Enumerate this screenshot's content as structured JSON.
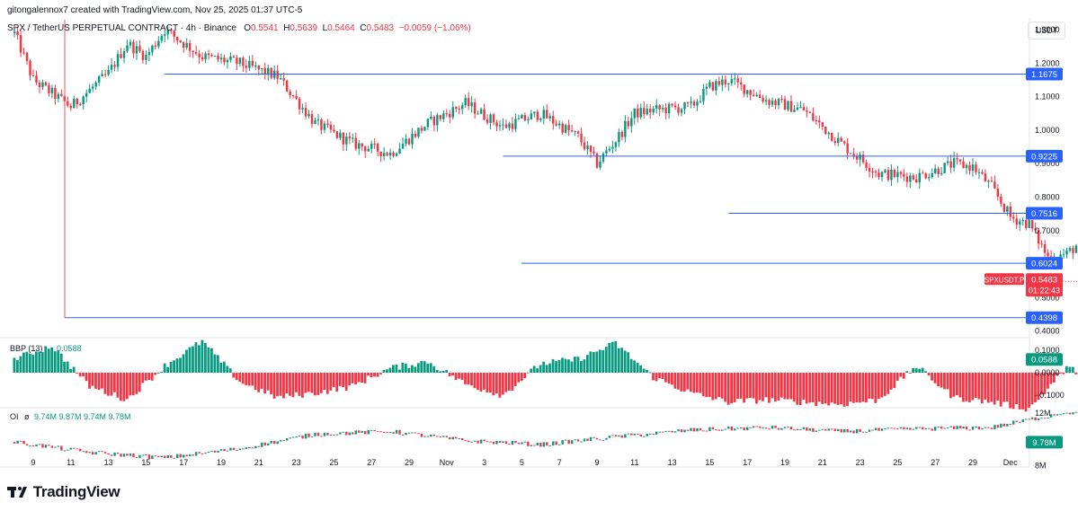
{
  "header": {
    "credit": "gitongalennox7 created with TradingView.com, Nov 25, 2025 01:37 UTC-5",
    "symbol": "SPX / TetherUS PERPETUAL CONTRACT · 4h · Binance",
    "o_label": "O",
    "o_value": "0.5541",
    "h_label": "H",
    "h_value": "0.5639",
    "l_label": "L",
    "l_value": "0.5464",
    "c_label": "C",
    "c_value": "0.5483",
    "change": "−0.0059 (−1.06%)"
  },
  "currency": "USDT",
  "footer": {
    "logo_text": "TradingView"
  },
  "colors": {
    "up": "#089981",
    "down": "#f23645",
    "line": "#2962ff",
    "grid": "#e0e3eb",
    "vline": "#f7525f"
  },
  "chart_data": [
    {
      "type": "candlestick",
      "title": "SPX / TetherUS PERPETUAL CONTRACT · 4h · Binance",
      "y_ticks": [
        "1.3000",
        "1.2000",
        "1.1000",
        "1.0000",
        "0.9000",
        "0.8000",
        "0.7000",
        "0.6000",
        "0.5000",
        "0.4000"
      ],
      "ylim": [
        0.38,
        1.33
      ],
      "x_ticks": [
        "9",
        "11",
        "13",
        "15",
        "17",
        "19",
        "21",
        "23",
        "25",
        "27",
        "29",
        "Nov",
        "3",
        "5",
        "7",
        "9",
        "11",
        "13",
        "15",
        "17",
        "19",
        "21",
        "23",
        "25",
        "27",
        "29",
        "Dec"
      ],
      "levels": [
        {
          "label": "1.1675",
          "value": 1.1675
        },
        {
          "label": "0.9225",
          "value": 0.9225
        },
        {
          "label": "0.7516",
          "value": 0.7516
        },
        {
          "label": "0.6024",
          "value": 0.6024
        },
        {
          "label": "0.4398",
          "value": 0.4398
        }
      ],
      "current_price": {
        "symbol": "SPXUSDT.P",
        "price": "0.5483",
        "value": 0.5483,
        "countdown": "01:22:43"
      },
      "close_path": [
        [
          0,
          1.29
        ],
        [
          1,
          1.15
        ],
        [
          3,
          1.07
        ],
        [
          5,
          1.17
        ],
        [
          6,
          1.26
        ],
        [
          7,
          1.22
        ],
        [
          8,
          1.3
        ],
        [
          10,
          1.22
        ],
        [
          12,
          1.2
        ],
        [
          14,
          1.16
        ],
        [
          16,
          1.02
        ],
        [
          18,
          0.96
        ],
        [
          20,
          0.93
        ],
        [
          22,
          1.02
        ],
        [
          24,
          1.08
        ],
        [
          26,
          1.01
        ],
        [
          28,
          1.05
        ],
        [
          30,
          0.98
        ],
        [
          31,
          0.9
        ],
        [
          32,
          0.97
        ],
        [
          33,
          1.05
        ],
        [
          34,
          1.06
        ],
        [
          36,
          1.07
        ],
        [
          37,
          1.13
        ],
        [
          38,
          1.15
        ],
        [
          40,
          1.09
        ],
        [
          42,
          1.06
        ],
        [
          44,
          0.96
        ],
        [
          46,
          0.87
        ],
        [
          48,
          0.86
        ],
        [
          50,
          0.9
        ],
        [
          51,
          0.89
        ],
        [
          52,
          0.83
        ],
        [
          53,
          0.74
        ],
        [
          54,
          0.72
        ],
        [
          55,
          0.62
        ],
        [
          56,
          0.63
        ],
        [
          57,
          0.68
        ],
        [
          59,
          0.7
        ],
        [
          60,
          0.64
        ],
        [
          61,
          0.72
        ],
        [
          62,
          0.66
        ],
        [
          63,
          0.71
        ],
        [
          65,
          0.73
        ],
        [
          66,
          0.72
        ],
        [
          67,
          0.7
        ],
        [
          68,
          0.68
        ],
        [
          69,
          0.64
        ],
        [
          70,
          0.58
        ],
        [
          71,
          0.54
        ],
        [
          72,
          0.53
        ],
        [
          73,
          0.52
        ],
        [
          74,
          0.5
        ],
        [
          75,
          0.49
        ],
        [
          76,
          0.47
        ],
        [
          77,
          0.52
        ],
        [
          78,
          0.55
        ],
        [
          79,
          0.52
        ],
        [
          80,
          0.57
        ],
        [
          81,
          0.49
        ],
        [
          82,
          0.46
        ],
        [
          83,
          0.45
        ],
        [
          84,
          0.45
        ],
        [
          85,
          0.47
        ],
        [
          86,
          0.5
        ],
        [
          87,
          0.52
        ],
        [
          88,
          0.54
        ],
        [
          89,
          0.58
        ],
        [
          90,
          0.55
        ]
      ]
    },
    {
      "type": "histogram",
      "indicator": "BBP (13)",
      "value_label": "0.0588",
      "y_ticks": [
        "0.1000",
        "0.0000",
        "−0.1000"
      ],
      "ylim": [
        -0.155,
        0.155
      ],
      "path": [
        [
          0,
          0.06
        ],
        [
          2,
          0.12
        ],
        [
          4,
          -0.06
        ],
        [
          6,
          -0.12
        ],
        [
          8,
          0.03
        ],
        [
          10,
          0.14
        ],
        [
          12,
          -0.04
        ],
        [
          14,
          -0.11
        ],
        [
          16,
          -0.09
        ],
        [
          18,
          -0.06
        ],
        [
          20,
          0.02
        ],
        [
          22,
          0.05
        ],
        [
          24,
          -0.05
        ],
        [
          26,
          -0.1
        ],
        [
          28,
          0.04
        ],
        [
          30,
          0.06
        ],
        [
          32,
          0.13
        ],
        [
          34,
          -0.02
        ],
        [
          36,
          -0.09
        ],
        [
          38,
          -0.13
        ],
        [
          40,
          -0.12
        ],
        [
          42,
          -0.13
        ],
        [
          44,
          -0.14
        ],
        [
          46,
          -0.12
        ],
        [
          48,
          0.03
        ],
        [
          50,
          -0.11
        ],
        [
          52,
          -0.13
        ],
        [
          54,
          -0.16
        ],
        [
          56,
          0.02
        ],
        [
          58,
          -0.03
        ],
        [
          60,
          -0.06
        ],
        [
          62,
          0.06
        ],
        [
          64,
          0.03
        ],
        [
          66,
          -0.05
        ],
        [
          68,
          -0.08
        ],
        [
          70,
          -0.12
        ],
        [
          72,
          -0.16
        ],
        [
          74,
          -0.08
        ],
        [
          76,
          -0.04
        ],
        [
          78,
          0.03
        ],
        [
          80,
          0.05
        ],
        [
          82,
          -0.06
        ],
        [
          84,
          -0.11
        ],
        [
          86,
          -0.08
        ],
        [
          88,
          0.04
        ],
        [
          90,
          0.09
        ]
      ]
    },
    {
      "type": "line",
      "indicator": "OI",
      "values_text": "9.74M  9.87M  9.74M  9.78M",
      "value_label": "9.78M",
      "y_ticks": [
        "12M",
        "8M"
      ],
      "ylim": [
        7.9,
        12.4
      ],
      "path": [
        [
          0,
          9.8
        ],
        [
          4,
          9.0
        ],
        [
          8,
          8.6
        ],
        [
          12,
          9.3
        ],
        [
          16,
          10.4
        ],
        [
          20,
          10.6
        ],
        [
          24,
          9.9
        ],
        [
          28,
          9.6
        ],
        [
          32,
          10.2
        ],
        [
          36,
          10.7
        ],
        [
          40,
          10.9
        ],
        [
          44,
          10.6
        ],
        [
          48,
          10.8
        ],
        [
          52,
          10.9
        ],
        [
          56,
          12.1
        ],
        [
          58,
          11.4
        ],
        [
          62,
          11.3
        ],
        [
          64,
          11.5
        ],
        [
          66,
          10.8
        ],
        [
          70,
          9.9
        ],
        [
          72,
          9.7
        ],
        [
          74,
          10.1
        ],
        [
          76,
          11.9
        ],
        [
          78,
          11.4
        ],
        [
          80,
          11.9
        ],
        [
          82,
          12.4
        ],
        [
          84,
          11.7
        ],
        [
          86,
          11.9
        ],
        [
          88,
          11.1
        ],
        [
          90,
          10.6
        ],
        [
          92,
          10.0
        ],
        [
          95,
          9.9
        ],
        [
          98,
          9.8
        ]
      ]
    }
  ]
}
